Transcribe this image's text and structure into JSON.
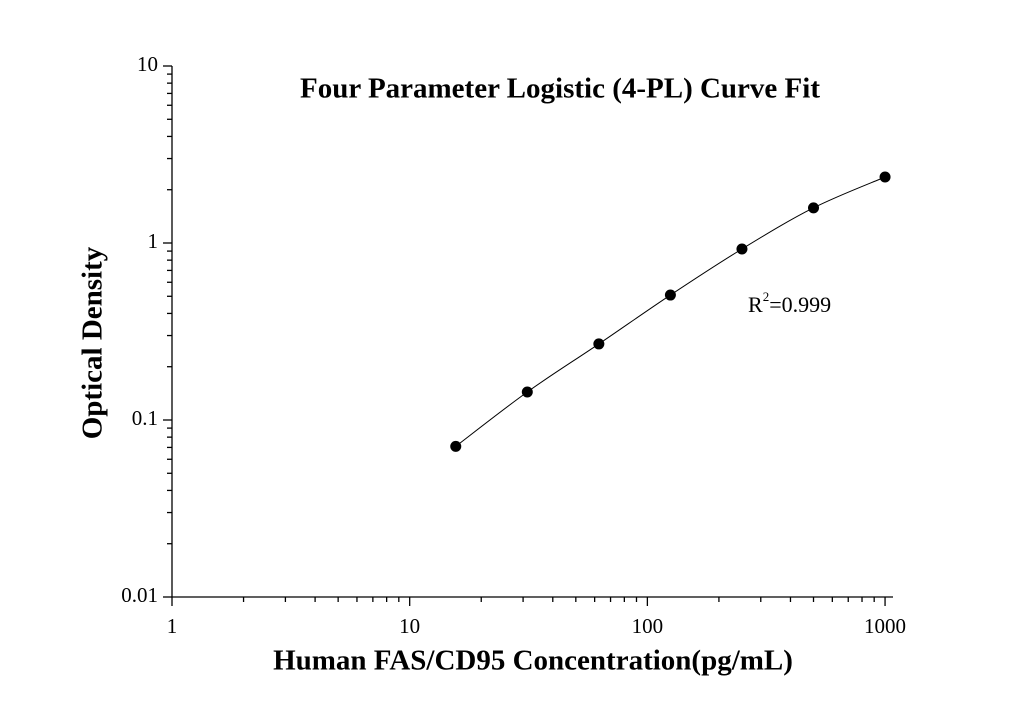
{
  "chart_data": {
    "type": "scatter",
    "title": "Four Parameter Logistic (4-PL) Curve Fit",
    "x_label": "Human FAS/CD95 Concentration(pg/mL)",
    "y_label": "Optical Density",
    "annotation": {
      "base": "R",
      "superscript": "2",
      "text": "=0.999"
    },
    "x": [
      15.625,
      31.25,
      62.5,
      125,
      250,
      500,
      1000
    ],
    "values": [
      0.071,
      0.144,
      0.269,
      0.508,
      0.925,
      1.58,
      2.36
    ],
    "color": "#000000",
    "fit_line": true,
    "log_x": true,
    "log_y": true,
    "xlim": [
      1,
      1080
    ],
    "ylim": [
      0.01,
      10
    ],
    "xticks": [
      1,
      10,
      100,
      1000
    ],
    "yticks": [
      0.01,
      0.1,
      1,
      10
    ],
    "xminorticks": [
      2,
      3,
      4,
      5,
      6,
      7,
      8,
      9,
      20,
      30,
      40,
      50,
      60,
      70,
      80,
      90,
      200,
      300,
      400,
      500,
      600,
      700,
      800,
      900
    ],
    "yminorticks": [
      0.02,
      0.03,
      0.04,
      0.05,
      0.06,
      0.07,
      0.08,
      0.09,
      0.2,
      0.3,
      0.4,
      0.5,
      0.6,
      0.7,
      0.8,
      0.9,
      2,
      3,
      4,
      5,
      6,
      7,
      8,
      9
    ],
    "grid": false
  }
}
